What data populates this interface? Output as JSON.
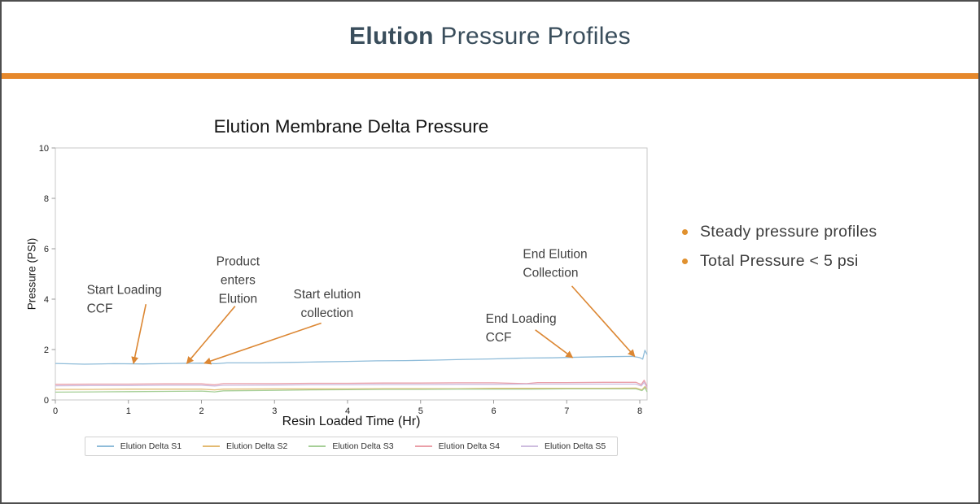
{
  "header": {
    "title_bold": "Elution",
    "title_rest": " Pressure Profiles"
  },
  "bullets": {
    "items": [
      "Steady pressure profiles",
      "Total Pressure < 5 psi"
    ]
  },
  "colors": {
    "accent_rule": "#E6882B",
    "title_text": "#3A4E5C",
    "bullet_dot": "#E0912F",
    "arrow": "#DC8733",
    "frame": "#C9C9C9",
    "tick_text": "#222222",
    "annotation_text": "#404040"
  },
  "chart_data": {
    "type": "line",
    "title": "Elution Membrane Delta Pressure",
    "xlabel": "Resin Loaded Time (Hr)",
    "ylabel": "Pressure (PSI)",
    "xlim": [
      0,
      8.1
    ],
    "ylim": [
      0,
      10
    ],
    "xticks": [
      0,
      1,
      2,
      3,
      4,
      5,
      6,
      7,
      8
    ],
    "yticks": [
      0,
      2,
      4,
      6,
      8,
      10
    ],
    "grid": false,
    "legend_position": "bottom",
    "series": [
      {
        "name": "Elution Delta S1",
        "color": "#8FBCD9",
        "points": [
          [
            0,
            1.45
          ],
          [
            0.4,
            1.42
          ],
          [
            0.8,
            1.44
          ],
          [
            1.2,
            1.43
          ],
          [
            1.6,
            1.45
          ],
          [
            2.0,
            1.46
          ],
          [
            2.2,
            1.44
          ],
          [
            2.35,
            1.47
          ],
          [
            2.8,
            1.47
          ],
          [
            3.2,
            1.49
          ],
          [
            3.6,
            1.51
          ],
          [
            4.0,
            1.53
          ],
          [
            4.4,
            1.55
          ],
          [
            4.8,
            1.56
          ],
          [
            5.2,
            1.58
          ],
          [
            5.6,
            1.61
          ],
          [
            6.0,
            1.63
          ],
          [
            6.4,
            1.66
          ],
          [
            6.8,
            1.67
          ],
          [
            7.2,
            1.7
          ],
          [
            7.6,
            1.72
          ],
          [
            7.9,
            1.73
          ],
          [
            8.0,
            1.68
          ],
          [
            8.04,
            1.62
          ],
          [
            8.07,
            1.97
          ],
          [
            8.1,
            1.8
          ]
        ]
      },
      {
        "name": "Elution Delta S2",
        "color": "#E3BA72",
        "points": [
          [
            0,
            0.42
          ],
          [
            0.5,
            0.42
          ],
          [
            1.0,
            0.43
          ],
          [
            1.5,
            0.43
          ],
          [
            2.0,
            0.43
          ],
          [
            2.18,
            0.4
          ],
          [
            2.3,
            0.43
          ],
          [
            3.0,
            0.44
          ],
          [
            3.5,
            0.44
          ],
          [
            4.0,
            0.44
          ],
          [
            4.5,
            0.45
          ],
          [
            5.0,
            0.45
          ],
          [
            5.5,
            0.45
          ],
          [
            6.0,
            0.46
          ],
          [
            6.5,
            0.46
          ],
          [
            7.0,
            0.46
          ],
          [
            7.5,
            0.46
          ],
          [
            7.95,
            0.47
          ],
          [
            8.03,
            0.4
          ],
          [
            8.07,
            0.53
          ],
          [
            8.1,
            0.44
          ]
        ]
      },
      {
        "name": "Elution Delta S3",
        "color": "#A6CF97",
        "points": [
          [
            0,
            0.31
          ],
          [
            0.5,
            0.32
          ],
          [
            1.0,
            0.33
          ],
          [
            1.5,
            0.34
          ],
          [
            2.0,
            0.35
          ],
          [
            2.18,
            0.32
          ],
          [
            2.3,
            0.36
          ],
          [
            3.0,
            0.38
          ],
          [
            3.5,
            0.4
          ],
          [
            4.0,
            0.41
          ],
          [
            4.5,
            0.42
          ],
          [
            5.0,
            0.42
          ],
          [
            5.5,
            0.43
          ],
          [
            6.0,
            0.43
          ],
          [
            6.5,
            0.43
          ],
          [
            7.0,
            0.44
          ],
          [
            7.5,
            0.44
          ],
          [
            7.95,
            0.44
          ],
          [
            8.03,
            0.37
          ],
          [
            8.07,
            0.49
          ],
          [
            8.1,
            0.32
          ]
        ]
      },
      {
        "name": "Elution Delta S4",
        "color": "#EA9FA8",
        "points": [
          [
            0,
            0.62
          ],
          [
            0.5,
            0.63
          ],
          [
            1.0,
            0.63
          ],
          [
            1.5,
            0.64
          ],
          [
            2.0,
            0.64
          ],
          [
            2.18,
            0.6
          ],
          [
            2.3,
            0.65
          ],
          [
            3.0,
            0.65
          ],
          [
            3.5,
            0.66
          ],
          [
            4.0,
            0.66
          ],
          [
            4.5,
            0.67
          ],
          [
            5.0,
            0.67
          ],
          [
            5.5,
            0.68
          ],
          [
            6.0,
            0.68
          ],
          [
            6.45,
            0.65
          ],
          [
            6.6,
            0.69
          ],
          [
            7.0,
            0.69
          ],
          [
            7.5,
            0.7
          ],
          [
            7.95,
            0.7
          ],
          [
            8.02,
            0.61
          ],
          [
            8.06,
            0.78
          ],
          [
            8.1,
            0.54
          ]
        ]
      },
      {
        "name": "Elution Delta S5",
        "color": "#CEBDDF",
        "points": [
          [
            0,
            0.56
          ],
          [
            0.5,
            0.57
          ],
          [
            1.0,
            0.57
          ],
          [
            1.5,
            0.58
          ],
          [
            2.0,
            0.58
          ],
          [
            2.18,
            0.55
          ],
          [
            2.3,
            0.58
          ],
          [
            3.0,
            0.59
          ],
          [
            3.5,
            0.6
          ],
          [
            4.0,
            0.6
          ],
          [
            4.5,
            0.61
          ],
          [
            5.0,
            0.61
          ],
          [
            5.5,
            0.62
          ],
          [
            6.0,
            0.62
          ],
          [
            6.5,
            0.63
          ],
          [
            7.0,
            0.63
          ],
          [
            7.5,
            0.63
          ],
          [
            7.95,
            0.63
          ],
          [
            8.02,
            0.55
          ],
          [
            8.06,
            0.7
          ],
          [
            8.1,
            0.47
          ]
        ]
      }
    ],
    "annotations": [
      {
        "id": "start-loading-ccf",
        "lines": [
          "Start Loading",
          "CCF"
        ],
        "align": "left",
        "text_hr": 0.43,
        "text_psi": 4.72,
        "arrow": {
          "from_hr": 1.24,
          "from_psi": 3.8,
          "to_hr": 1.07,
          "to_psi": 1.45
        }
      },
      {
        "id": "product-enters-elution",
        "lines": [
          "Product",
          "enters",
          "Elution"
        ],
        "align": "center",
        "text_hr": 2.5,
        "text_psi": 5.85,
        "arrow": {
          "from_hr": 2.46,
          "from_psi": 3.72,
          "to_hr": 1.8,
          "to_psi": 1.45
        }
      },
      {
        "id": "start-elution-collection",
        "lines": [
          "Start elution",
          "collection"
        ],
        "align": "center",
        "text_hr": 3.72,
        "text_psi": 4.55,
        "arrow": {
          "from_hr": 3.64,
          "from_psi": 3.05,
          "to_hr": 2.04,
          "to_psi": 1.46
        }
      },
      {
        "id": "end-loading-ccf",
        "lines": [
          "End Loading",
          "CCF"
        ],
        "align": "left",
        "text_hr": 5.89,
        "text_psi": 3.58,
        "arrow": {
          "from_hr": 6.57,
          "from_psi": 2.78,
          "to_hr": 7.08,
          "to_psi": 1.68
        }
      },
      {
        "id": "end-elution-collection",
        "lines": [
          "End Elution",
          "Collection"
        ],
        "align": "left",
        "text_hr": 6.4,
        "text_psi": 6.15,
        "arrow": {
          "from_hr": 7.07,
          "from_psi": 4.52,
          "to_hr": 7.93,
          "to_psi": 1.73
        }
      }
    ]
  }
}
